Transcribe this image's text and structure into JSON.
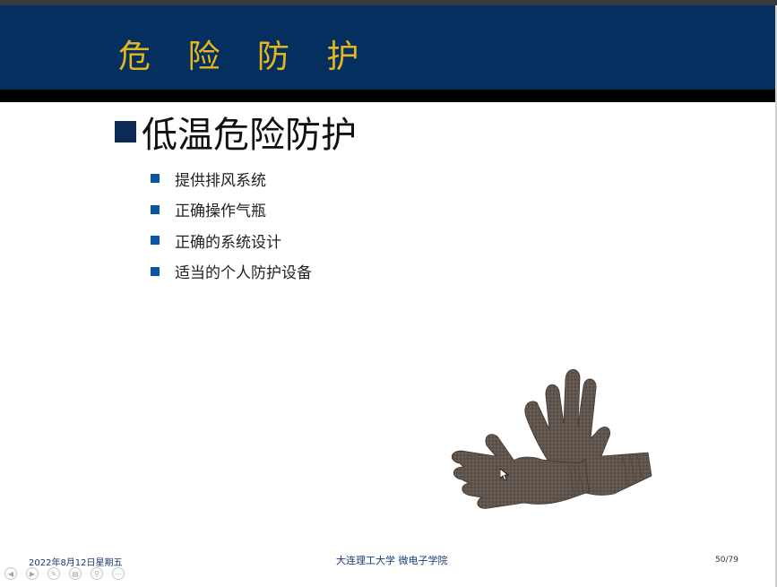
{
  "slide": {
    "title": "危 险 防 护",
    "heading": "低温危险防护",
    "bullets": [
      "提供排风系统",
      "正确操作气瓶",
      "正确的系统设计",
      "适当的个人防护设备"
    ]
  },
  "footer": {
    "date": "2022年8月12日星期五",
    "org": "大连理工大学  微电子学院",
    "page": "50/79"
  },
  "nav": {
    "icons": [
      "prev-icon",
      "next-icon",
      "pen-icon",
      "slides-icon",
      "zoom-icon",
      "more-icon"
    ]
  },
  "colors": {
    "header_bg": "#042f5f",
    "title_color": "#e6b71d",
    "bullet_color": "#0a55a4"
  }
}
